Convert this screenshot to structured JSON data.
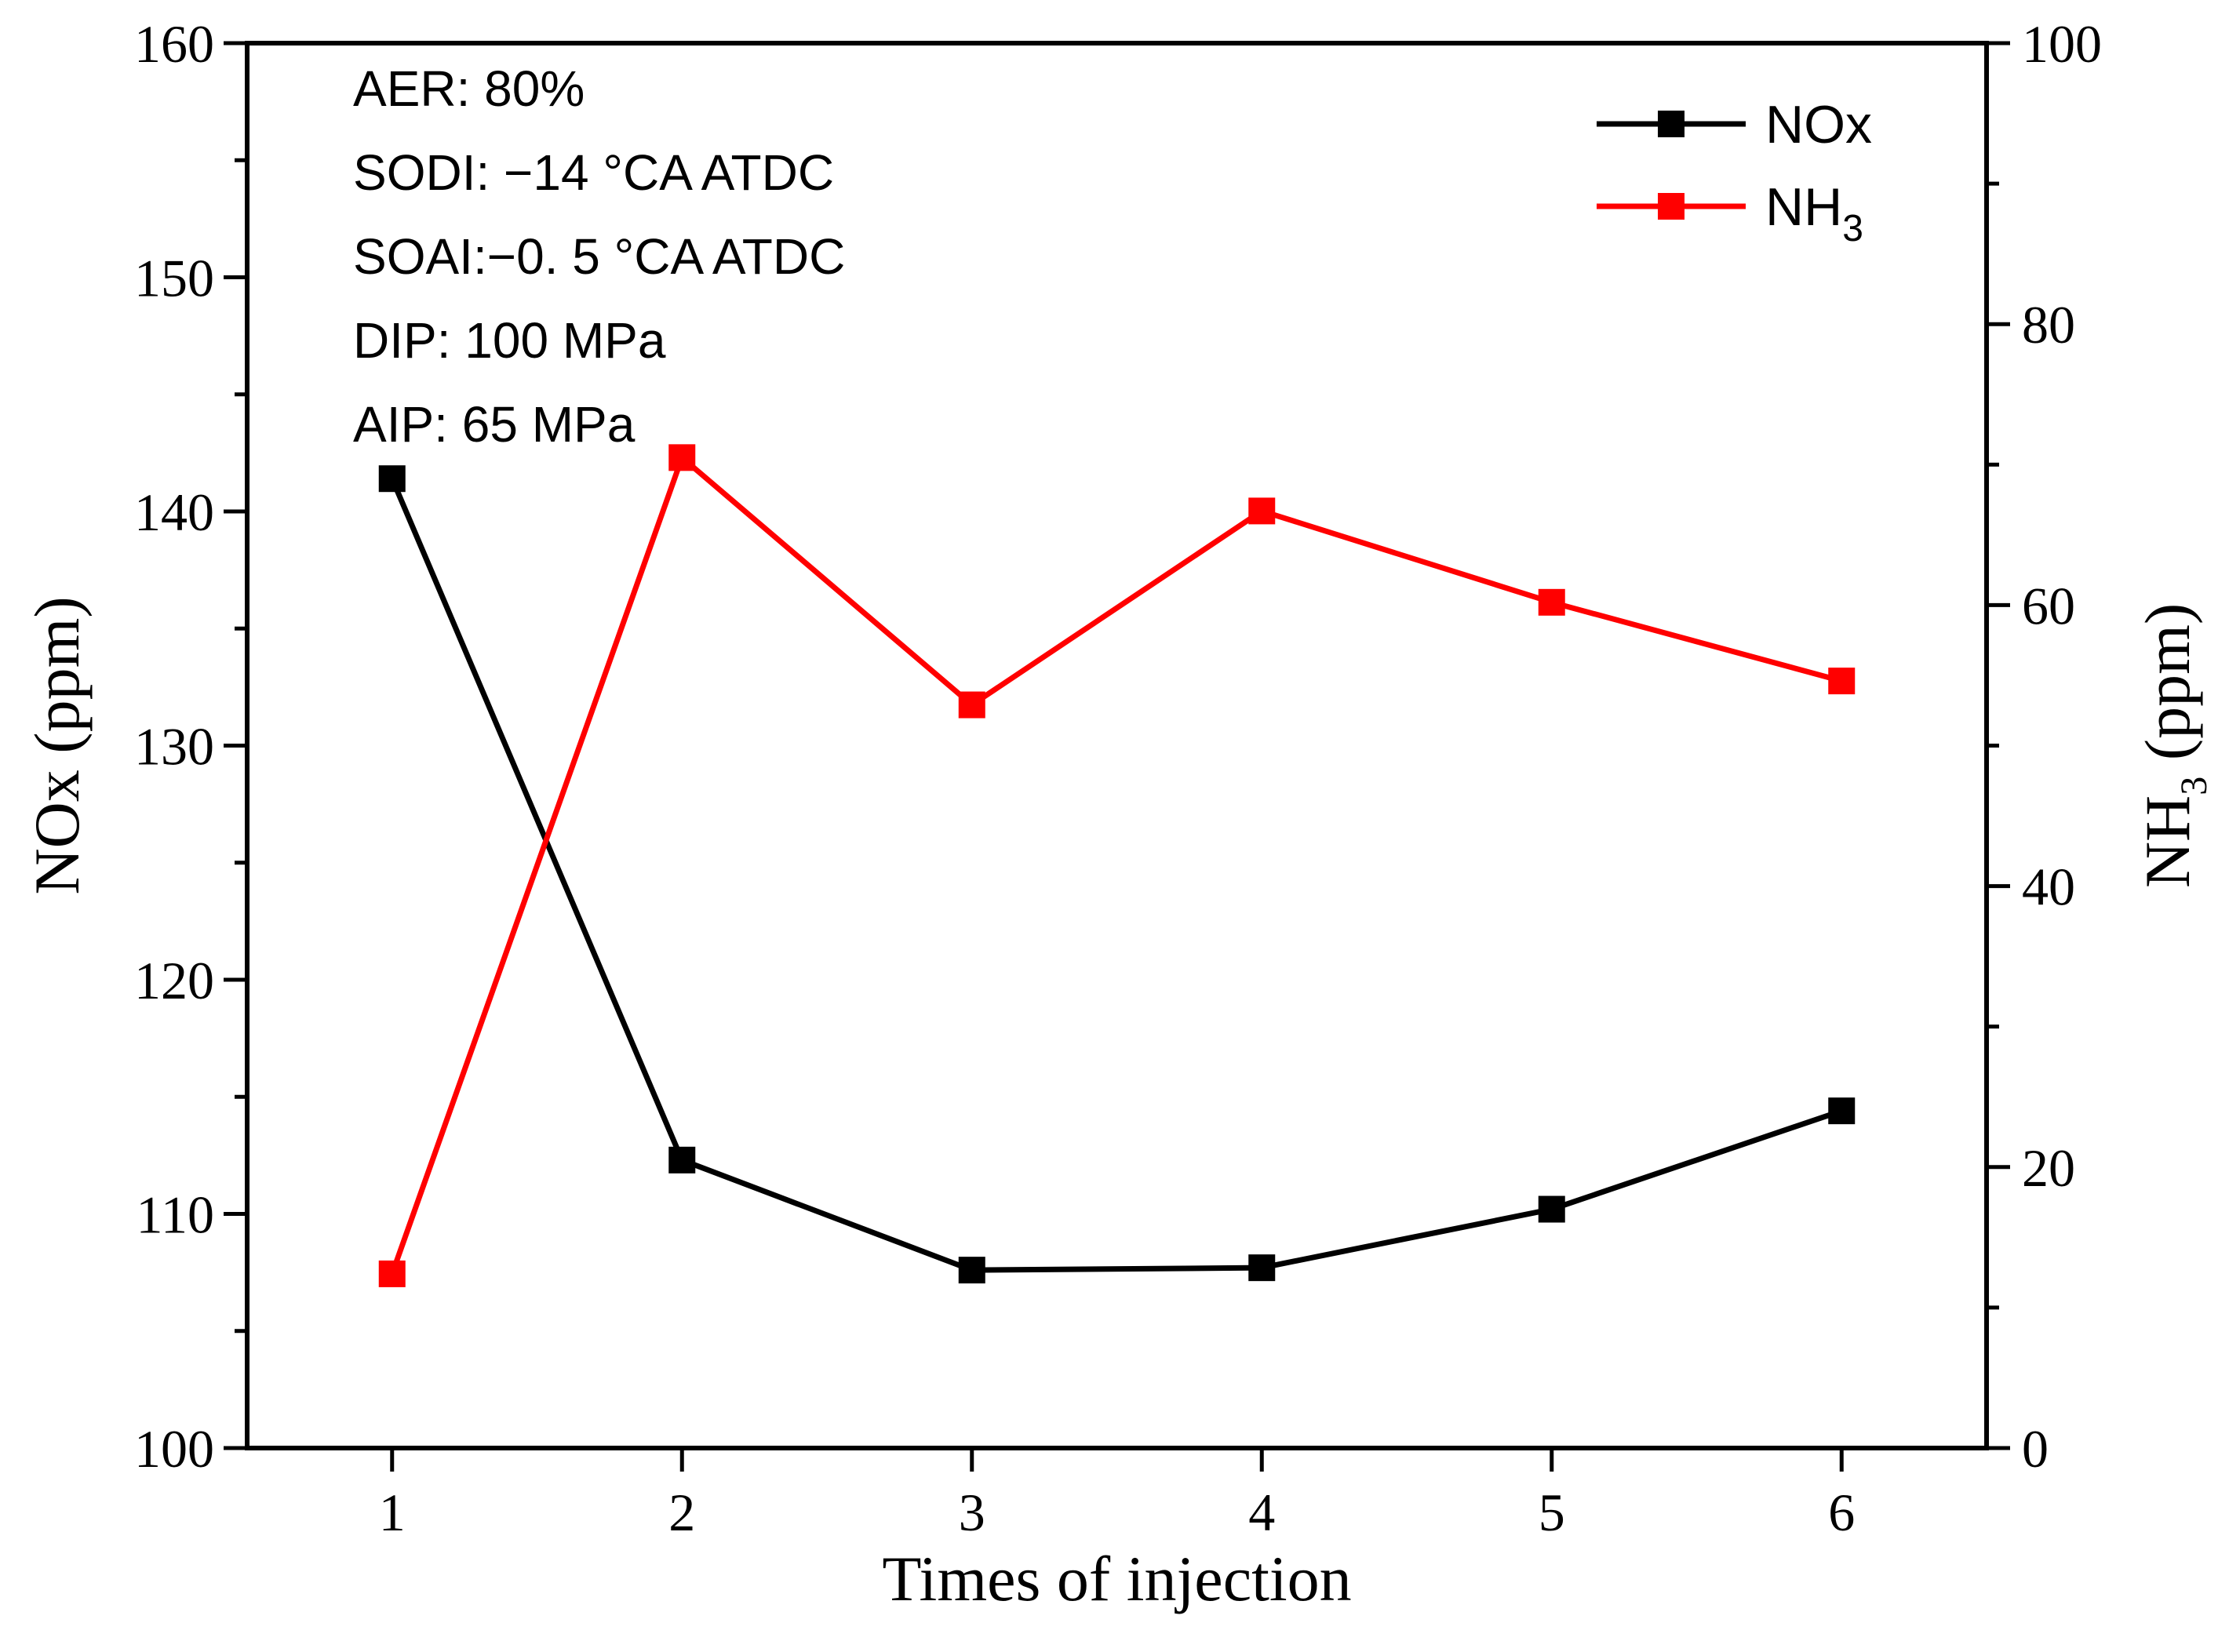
{
  "chart_data": {
    "type": "line",
    "xlabel": "Times of injection",
    "ylabel_left": "NOx (ppm)",
    "ylabel_right_main": "NH",
    "ylabel_right_sub": "3",
    "ylabel_right_suffix": " (ppm)",
    "x": [
      1,
      2,
      3,
      4,
      5,
      6
    ],
    "x_tick_labels": [
      "1",
      "2",
      "3",
      "4",
      "5",
      "6"
    ],
    "xlim": [
      0.5,
      6.5
    ],
    "ylim_left": [
      100,
      160
    ],
    "ylim_right": [
      0,
      100
    ],
    "y_left_ticks": [
      100,
      110,
      120,
      130,
      140,
      150,
      160
    ],
    "y_left_tick_labels": [
      "100",
      "110",
      "120",
      "130",
      "140",
      "150",
      "160"
    ],
    "y_right_ticks": [
      0,
      20,
      40,
      60,
      80,
      100
    ],
    "y_right_tick_labels": [
      "0",
      "20",
      "40",
      "60",
      "80",
      "100"
    ],
    "series": [
      {
        "name": "NOx",
        "legend_main": "NOx",
        "legend_sub": "",
        "axis": "left",
        "color": "#000000",
        "marker": "square",
        "values": [
          141.4,
          112.3,
          107.6,
          107.7,
          110.2,
          114.4
        ]
      },
      {
        "name": "NH3",
        "legend_main": "NH",
        "legend_sub": "3",
        "axis": "right",
        "color": "#ff0000",
        "marker": "square",
        "values": [
          12.4,
          70.5,
          52.9,
          66.7,
          60.2,
          54.6
        ]
      }
    ],
    "annotations": [
      "AER: 80%",
      "SODI:  −14 °CA ATDC",
      "SOAI:−0. 5 °CA ATDC",
      "DIP: 100 MPa",
      "AIP: 65 MPa"
    ],
    "legend_position": "top-right",
    "grid": false
  }
}
